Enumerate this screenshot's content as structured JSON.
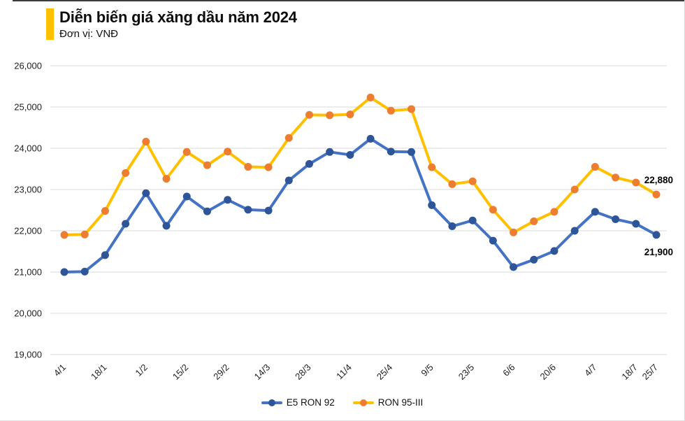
{
  "header": {
    "title": "Diễn biến giá xăng dầu năm 2024",
    "subtitle": "Đơn vị: VNĐ",
    "accent_color": "#FFC000"
  },
  "chart_data": {
    "type": "line",
    "title": "Diễn biến giá xăng dầu năm 2024",
    "unit": "VNĐ",
    "ylim": [
      19000,
      26000
    ],
    "grid": true,
    "grid_color": "#D9D9D9",
    "legend_position": "bottom-center",
    "y_ticks": [
      {
        "value": 19000,
        "label": "19,000"
      },
      {
        "value": 20000,
        "label": "20,000"
      },
      {
        "value": 21000,
        "label": "21,000"
      },
      {
        "value": 22000,
        "label": "22,000"
      },
      {
        "value": 23000,
        "label": "23,000"
      },
      {
        "value": 24000,
        "label": "24,000"
      },
      {
        "value": 25000,
        "label": "25,000"
      },
      {
        "value": 26000,
        "label": "26,000"
      }
    ],
    "x_ticks": [
      {
        "index": 0,
        "label": "4/1"
      },
      {
        "index": 2,
        "label": "18/1"
      },
      {
        "index": 4,
        "label": "1/2"
      },
      {
        "index": 6,
        "label": "15/2"
      },
      {
        "index": 8,
        "label": "29/2"
      },
      {
        "index": 10,
        "label": "14/3"
      },
      {
        "index": 12,
        "label": "28/3"
      },
      {
        "index": 14,
        "label": "11/4"
      },
      {
        "index": 16,
        "label": "25/4"
      },
      {
        "index": 18,
        "label": "9/5"
      },
      {
        "index": 20,
        "label": "23/5"
      },
      {
        "index": 22,
        "label": "6/6"
      },
      {
        "index": 24,
        "label": "20/6"
      },
      {
        "index": 26,
        "label": "4/7"
      },
      {
        "index": 28,
        "label": "18/7"
      },
      {
        "index": 29,
        "label": "25/7"
      }
    ],
    "series": [
      {
        "name": "E5 RON 92",
        "line_color": "#4472C4",
        "marker_color": "#2E5597",
        "values": [
          21000,
          21010,
          21410,
          22170,
          22910,
          22120,
          22830,
          22470,
          22750,
          22510,
          22490,
          23220,
          23620,
          23910,
          23840,
          24230,
          23920,
          23910,
          22620,
          22110,
          22250,
          21760,
          21120,
          21300,
          21510,
          22000,
          22460,
          22280,
          22170,
          21900
        ]
      },
      {
        "name": "RON 95-III",
        "line_color": "#FFC000",
        "marker_color": "#ED7D31",
        "values": [
          21900,
          21910,
          22480,
          23400,
          24160,
          23260,
          23910,
          23590,
          23920,
          23550,
          23540,
          24250,
          24810,
          24800,
          24820,
          25230,
          24910,
          24950,
          23540,
          23130,
          23200,
          22510,
          21960,
          22230,
          22460,
          23000,
          23550,
          23290,
          23170,
          22880
        ]
      }
    ],
    "end_labels": [
      {
        "text": "22,880",
        "series_index": 1,
        "position": "above"
      },
      {
        "text": "21,900",
        "series_index": 0,
        "position": "below"
      }
    ]
  }
}
